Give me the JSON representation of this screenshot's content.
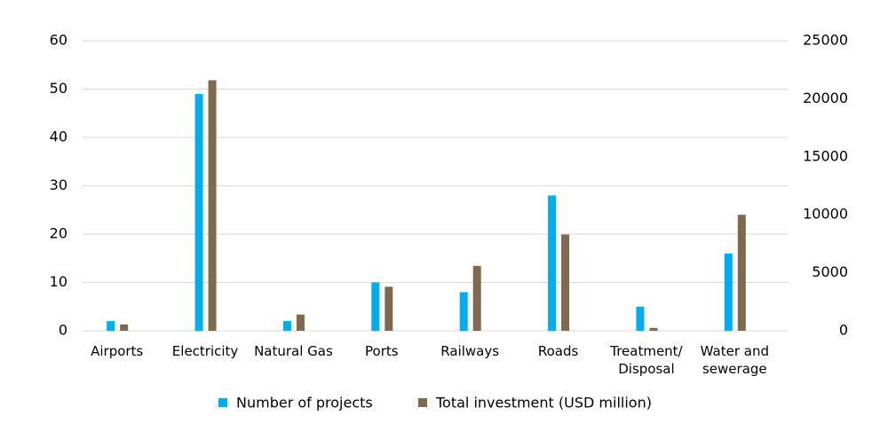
{
  "chart_data": {
    "type": "bar",
    "categories": [
      "Airports",
      "Electricity",
      "Natural Gas",
      "Ports",
      "Railways",
      "Roads",
      "Treatment/ Disposal",
      "Water and sewerage"
    ],
    "series": [
      {
        "name": "Number of projects",
        "color": "#00aeef",
        "values": [
          2,
          49,
          2,
          10,
          8,
          28,
          5,
          16
        ]
      },
      {
        "name": "Total investment (USD million)",
        "color": "#7f6a4f",
        "axis": "y2",
        "values": [
          550,
          21600,
          1400,
          3800,
          5600,
          8300,
          250,
          10000
        ]
      }
    ],
    "ylim": [
      0,
      60
    ],
    "yticks": [
      0,
      10,
      20,
      30,
      40,
      50,
      60
    ],
    "y2lim": [
      0,
      25000
    ],
    "y2ticks": [
      0,
      5000,
      10000,
      15000,
      20000,
      25000
    ],
    "grid": true,
    "legend": "bottom"
  }
}
